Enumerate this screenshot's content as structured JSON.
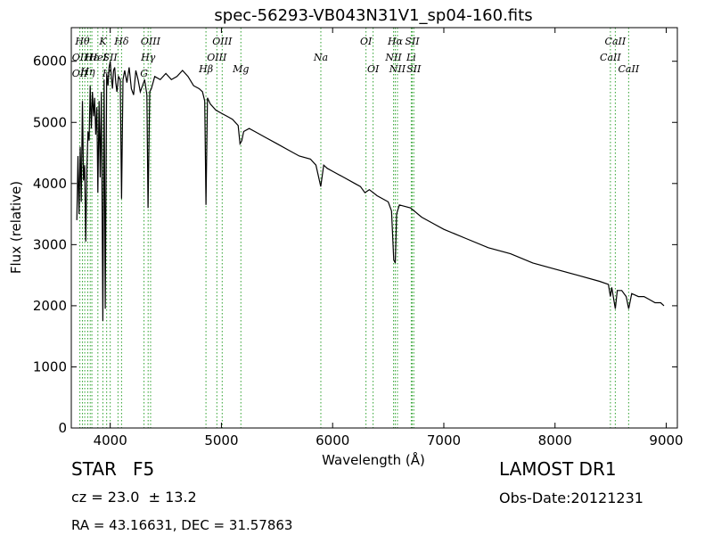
{
  "chart_data": {
    "type": "line",
    "title": "spec-56293-VB043N31V1_sp04-160.fits",
    "xlabel": "Wavelength (Å)",
    "ylabel": "Flux (relative)",
    "xlim": [
      3650,
      9100
    ],
    "ylim": [
      0,
      6550
    ],
    "xticks": [
      4000,
      5000,
      6000,
      7000,
      8000,
      9000
    ],
    "yticks": [
      0,
      1000,
      2000,
      3000,
      4000,
      5000,
      6000
    ],
    "grid": false,
    "series": [
      {
        "values_note": "",
        "x": [
          3700,
          3710,
          3720,
          3730,
          3740,
          3750,
          3760,
          3770,
          3780,
          3790,
          3800,
          3810,
          3820,
          3830,
          3840,
          3850,
          3860,
          3870,
          3880,
          3889,
          3900,
          3910,
          3920,
          3934,
          3945,
          3955,
          3968,
          3980,
          3990,
          4000,
          4010,
          4020,
          4030,
          4040,
          4050,
          4060,
          4075,
          4090,
          4102,
          4115,
          4130,
          4150,
          4170,
          4190,
          4210,
          4230,
          4250,
          4270,
          4290,
          4310,
          4330,
          4340,
          4355,
          4370,
          4400,
          4450,
          4500,
          4550,
          4600,
          4650,
          4700,
          4750,
          4800,
          4830,
          4850,
          4861,
          4875,
          4900,
          4950,
          5000,
          5050,
          5100,
          5150,
          5167,
          5183,
          5200,
          5250,
          5300,
          5400,
          5500,
          5600,
          5700,
          5800,
          5850,
          5893,
          5920,
          5950,
          6000,
          6100,
          6200,
          6250,
          6290,
          6330,
          6400,
          6500,
          6530,
          6550,
          6563,
          6575,
          6600,
          6700,
          6800,
          6900,
          7000,
          7200,
          7400,
          7600,
          7800,
          8000,
          8200,
          8400,
          8480,
          8498,
          8510,
          8542,
          8560,
          8600,
          8640,
          8662,
          8690,
          8750,
          8800,
          8850,
          8900,
          8950,
          8980
        ],
        "y": [
          3400,
          4450,
          3500,
          4600,
          3700,
          5350,
          4050,
          4300,
          3050,
          4250,
          4850,
          4700,
          5600,
          4900,
          5500,
          5100,
          5400,
          4800,
          5250,
          3850,
          5350,
          4100,
          5500,
          1750,
          5700,
          1950,
          5800,
          5600,
          5900,
          6000,
          5750,
          5550,
          5850,
          5900,
          5650,
          5500,
          5750,
          5700,
          3750,
          5700,
          5850,
          5650,
          5900,
          5550,
          5450,
          5850,
          5700,
          5500,
          5600,
          5700,
          5450,
          3600,
          5500,
          5550,
          5750,
          5700,
          5800,
          5700,
          5750,
          5850,
          5750,
          5600,
          5550,
          5500,
          5350,
          3650,
          5400,
          5300,
          5200,
          5150,
          5100,
          5050,
          4950,
          4650,
          4700,
          4850,
          4900,
          4850,
          4750,
          4650,
          4550,
          4450,
          4400,
          4300,
          3950,
          4300,
          4250,
          4200,
          4100,
          4000,
          3950,
          3850,
          3900,
          3800,
          3700,
          3550,
          2750,
          2700,
          3500,
          3650,
          3600,
          3450,
          3350,
          3250,
          3100,
          2950,
          2850,
          2700,
          2600,
          2500,
          2400,
          2350,
          2150,
          2300,
          1950,
          2250,
          2250,
          2150,
          1950,
          2200,
          2150,
          2150,
          2100,
          2050,
          2050,
          2000
        ]
      }
    ],
    "lines": [
      {
        "x": 3727,
        "labels": [
          {
            "text": "OII",
            "row": "r2"
          },
          {
            "text": "OII",
            "row": "r4"
          }
        ]
      },
      {
        "x": 3750,
        "labels": [
          {
            "text": "Hθ",
            "row": "r1"
          }
        ]
      },
      {
        "x": 3771,
        "labels": []
      },
      {
        "x": 3798,
        "labels": [
          {
            "text": "Hη",
            "row": "r3"
          }
        ]
      },
      {
        "x": 3820,
        "labels": []
      },
      {
        "x": 3835,
        "labels": [
          {
            "text": "Hε",
            "row": "r2"
          }
        ]
      },
      {
        "x": 3889,
        "labels": [
          {
            "text": "HeI",
            "row": "r2"
          }
        ]
      },
      {
        "x": 3934,
        "labels": [
          {
            "text": "K",
            "row": "r1"
          }
        ]
      },
      {
        "x": 3968,
        "labels": [
          {
            "text": "H",
            "row": "r4"
          }
        ]
      },
      {
        "x": 4000,
        "labels": [
          {
            "text": "SII",
            "row": "r2"
          }
        ]
      },
      {
        "x": 4070,
        "labels": []
      },
      {
        "x": 4102,
        "labels": [
          {
            "text": "Hδ",
            "row": "r1"
          }
        ]
      },
      {
        "x": 4304,
        "labels": [
          {
            "text": "G",
            "row": "r4"
          }
        ]
      },
      {
        "x": 4341,
        "labels": [
          {
            "text": "Hγ",
            "row": "r2"
          }
        ]
      },
      {
        "x": 4363,
        "labels": [
          {
            "text": "OIII",
            "row": "r1"
          }
        ]
      },
      {
        "x": 4861,
        "labels": [
          {
            "text": "Hβ",
            "row": "r4"
          }
        ]
      },
      {
        "x": 4959,
        "labels": [
          {
            "text": "OIII",
            "row": "r2"
          }
        ]
      },
      {
        "x": 5007,
        "labels": [
          {
            "text": "OIII",
            "row": "r1"
          }
        ]
      },
      {
        "x": 5175,
        "labels": [
          {
            "text": "Mg",
            "row": "r4"
          }
        ]
      },
      {
        "x": 5894,
        "labels": [
          {
            "text": "Na",
            "row": "r2"
          }
        ]
      },
      {
        "x": 6300,
        "labels": [
          {
            "text": "OI",
            "row": "r1"
          }
        ]
      },
      {
        "x": 6364,
        "labels": [
          {
            "text": "OI",
            "row": "r4"
          }
        ]
      },
      {
        "x": 6548,
        "labels": [
          {
            "text": "NII",
            "row": "r2"
          }
        ]
      },
      {
        "x": 6563,
        "labels": [
          {
            "text": "Hα",
            "row": "r1"
          }
        ]
      },
      {
        "x": 6583,
        "labels": [
          {
            "text": "NII",
            "row": "r4"
          }
        ]
      },
      {
        "x": 6707,
        "labels": [
          {
            "text": "Li",
            "row": "r2"
          }
        ]
      },
      {
        "x": 6716,
        "labels": [
          {
            "text": "SII",
            "row": "r1"
          }
        ]
      },
      {
        "x": 6730,
        "labels": [
          {
            "text": "SII",
            "row": "r4"
          }
        ]
      },
      {
        "x": 8498,
        "labels": [
          {
            "text": "CaII",
            "row": "r2"
          }
        ]
      },
      {
        "x": 8542,
        "labels": [
          {
            "text": "CaII",
            "row": "r1"
          }
        ]
      },
      {
        "x": 8662,
        "labels": [
          {
            "text": "CaII",
            "row": "r4"
          }
        ]
      }
    ]
  },
  "info": {
    "object_class": "STAR",
    "subclass": "F5",
    "redshift": "cz = 23.0  ± 13.2",
    "coords": "RA = 43.16631, DEC = 31.57863",
    "survey": "LAMOST DR1",
    "obs_date": "Obs-Date:20121231"
  },
  "colors": {
    "spectrum": "#000000",
    "marker_lines": "#2ca02c",
    "axes": "#000000"
  }
}
